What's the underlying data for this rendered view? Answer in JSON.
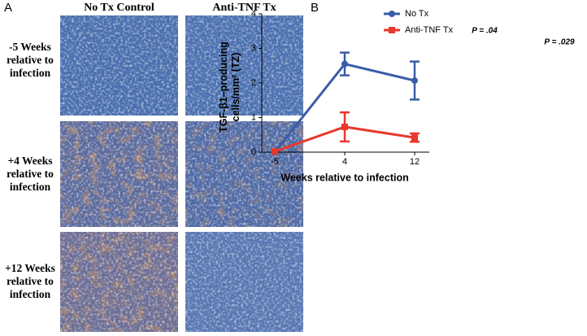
{
  "panel_a": {
    "label": "A",
    "columns": [
      "No Tx Control",
      "Anti-TNF Tx"
    ],
    "rows": [
      "-5 Weeks relative to infection",
      "+4 Weeks relative to infection",
      "+12 Weeks relative to infection"
    ]
  },
  "panel_b": {
    "label": "B"
  },
  "chart_data": {
    "type": "line",
    "x_label": "Weeks relative to infection",
    "y_label": "TGF-β1–producing cells/mm² (TZ)",
    "categories": [
      "-5",
      "4",
      "12"
    ],
    "ylim": [
      0,
      4
    ],
    "yticks": [
      0,
      1,
      2,
      3,
      4
    ],
    "legend": "top-right",
    "series": [
      {
        "name": "No Tx",
        "color": "#3a5ca8",
        "marker": "circle",
        "values": [
          0,
          2.55,
          2.07
        ],
        "errors": [
          0,
          0.33,
          0.55
        ]
      },
      {
        "name": "Anti-TNF Tx",
        "color": "#e8372b",
        "marker": "square",
        "values": [
          0.02,
          0.73,
          0.42
        ],
        "errors": [
          0,
          0.42,
          0.12
        ]
      }
    ],
    "annotations": [
      "P = .04",
      "P = .029"
    ]
  }
}
